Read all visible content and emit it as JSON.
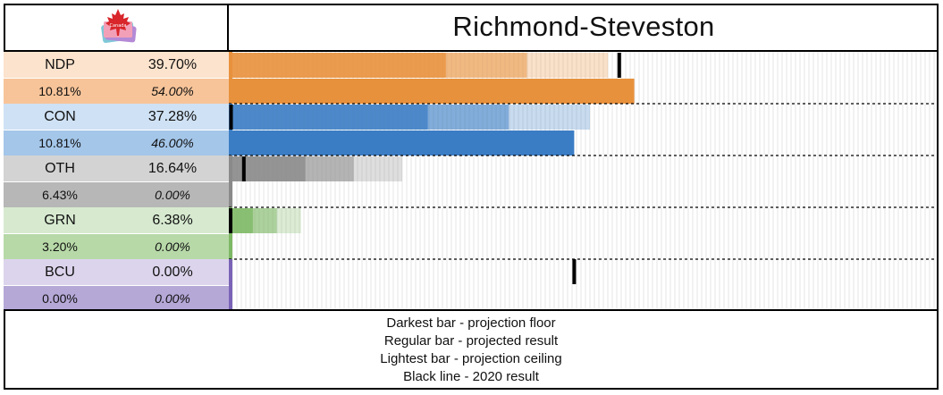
{
  "title": "Richmond-Steveston",
  "legend": [
    "Darkest bar - projection floor",
    "Regular bar - projected result",
    "Lightest bar - projection ceiling",
    "Black line - 2020 result"
  ],
  "colors": {
    "NDP": {
      "dark": "#e8913c",
      "light_cell": "#fbe3cd",
      "dark_cell": "#f7c499"
    },
    "CON": {
      "dark": "#3b7dc4",
      "light_cell": "#cfe1f4",
      "dark_cell": "#a4c6e9"
    },
    "OTH": {
      "dark": "#8a8a8a",
      "light_cell": "#d3d3d3",
      "dark_cell": "#b7b7b7"
    },
    "GRN": {
      "dark": "#7db864",
      "light_cell": "#d7ead0",
      "dark_cell": "#b7d9a8"
    },
    "BCU": {
      "dark": "#7a63b6",
      "light_cell": "#dcd4ec",
      "dark_cell": "#b5a8d7"
    }
  },
  "parties": [
    {
      "name": "NDP",
      "projected": "39.70%",
      "margin": "10.81%",
      "win_prob": "54.00%"
    },
    {
      "name": "CON",
      "projected": "37.28%",
      "margin": "10.81%",
      "win_prob": "46.00%"
    },
    {
      "name": "OTH",
      "projected": "16.64%",
      "margin": "6.43%",
      "win_prob": "0.00%"
    },
    {
      "name": "GRN",
      "projected": "6.38%",
      "margin": "3.20%",
      "win_prob": "0.00%"
    },
    {
      "name": "BCU",
      "projected": "0.00%",
      "margin": "0.00%",
      "win_prob": "0.00%"
    }
  ],
  "chart_data": {
    "type": "bar",
    "x_max_pct": 100,
    "series": [
      {
        "name": "NDP",
        "floor": 28.9,
        "projected": 39.7,
        "ceiling": 50.5,
        "result_2020": 52.0,
        "win_prob": 54.0
      },
      {
        "name": "CON",
        "projected": 37.28,
        "floor": 26.5,
        "ceiling": 48.1,
        "result_2020": 0.3,
        "win_prob": 46.0
      },
      {
        "name": "OTH",
        "floor": 10.2,
        "projected": 16.64,
        "ceiling": 23.1,
        "result_2020": 2.0,
        "win_prob": 0.0
      },
      {
        "name": "GRN",
        "floor": 3.2,
        "projected": 6.38,
        "ceiling": 9.6,
        "result_2020": 0.0,
        "win_prob": 0.0
      },
      {
        "name": "BCU",
        "floor": 0.0,
        "projected": 0.0,
        "ceiling": 0.0,
        "result_2020": 46.0,
        "win_prob": 0.0
      }
    ]
  }
}
